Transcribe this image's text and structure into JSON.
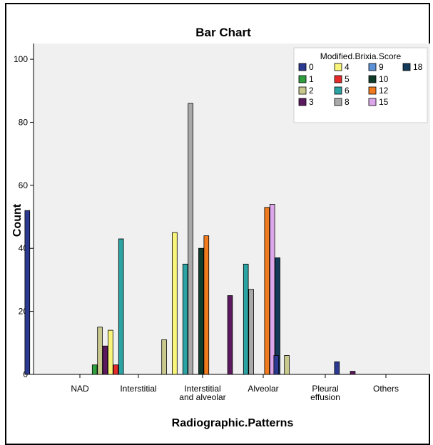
{
  "chart_data": {
    "type": "bar",
    "title": "Bar Chart",
    "xlabel": "Radiographic.Patterns",
    "ylabel": "Count",
    "ylim": [
      0,
      105
    ],
    "yticks": [
      0,
      20,
      40,
      60,
      80,
      100
    ],
    "grid": false,
    "legend_position": "top-right",
    "legend_title": "Modified.Brixia.Score",
    "categories": [
      [
        "NAD"
      ],
      [
        "Interstitial"
      ],
      [
        "Interstitial",
        "and alveolar"
      ],
      [
        "Alveolar"
      ],
      [
        "Pleural",
        "effusion"
      ],
      [
        "Others"
      ]
    ],
    "series": [
      {
        "name": "0",
        "color": "#2b3990",
        "values": [
          52,
          0,
          0,
          0,
          6,
          4
        ]
      },
      {
        "name": "1",
        "color": "#2e9e3e",
        "values": [
          0,
          3,
          0,
          0,
          0,
          0
        ]
      },
      {
        "name": "2",
        "color": "#c9c98e",
        "values": [
          0,
          15,
          11,
          0,
          6,
          0
        ]
      },
      {
        "name": "3",
        "color": "#5c1a5e",
        "values": [
          0,
          9,
          0,
          25,
          0,
          1
        ]
      },
      {
        "name": "4",
        "color": "#f8f57a",
        "values": [
          0,
          14,
          45,
          0,
          0,
          0
        ]
      },
      {
        "name": "5",
        "color": "#e52a2a",
        "values": [
          0,
          3,
          0,
          0,
          0,
          0
        ]
      },
      {
        "name": "6",
        "color": "#2ba3a3",
        "values": [
          0,
          43,
          35,
          35,
          0,
          0
        ]
      },
      {
        "name": "8",
        "color": "#a9a9a9",
        "values": [
          0,
          0,
          86,
          27,
          0,
          0
        ]
      },
      {
        "name": "9",
        "color": "#5b8fd6",
        "values": [
          0,
          0,
          0,
          0,
          0,
          0
        ]
      },
      {
        "name": "10",
        "color": "#0f3b2a",
        "values": [
          0,
          0,
          40,
          0,
          0,
          0
        ]
      },
      {
        "name": "12",
        "color": "#f07a1e",
        "values": [
          0,
          0,
          44,
          53,
          0,
          0
        ]
      },
      {
        "name": "15",
        "color": "#dca6ea",
        "values": [
          0,
          0,
          0,
          54,
          0,
          0
        ]
      },
      {
        "name": "18",
        "color": "#143a5a",
        "values": [
          0,
          0,
          0,
          37,
          0,
          0
        ]
      }
    ]
  }
}
